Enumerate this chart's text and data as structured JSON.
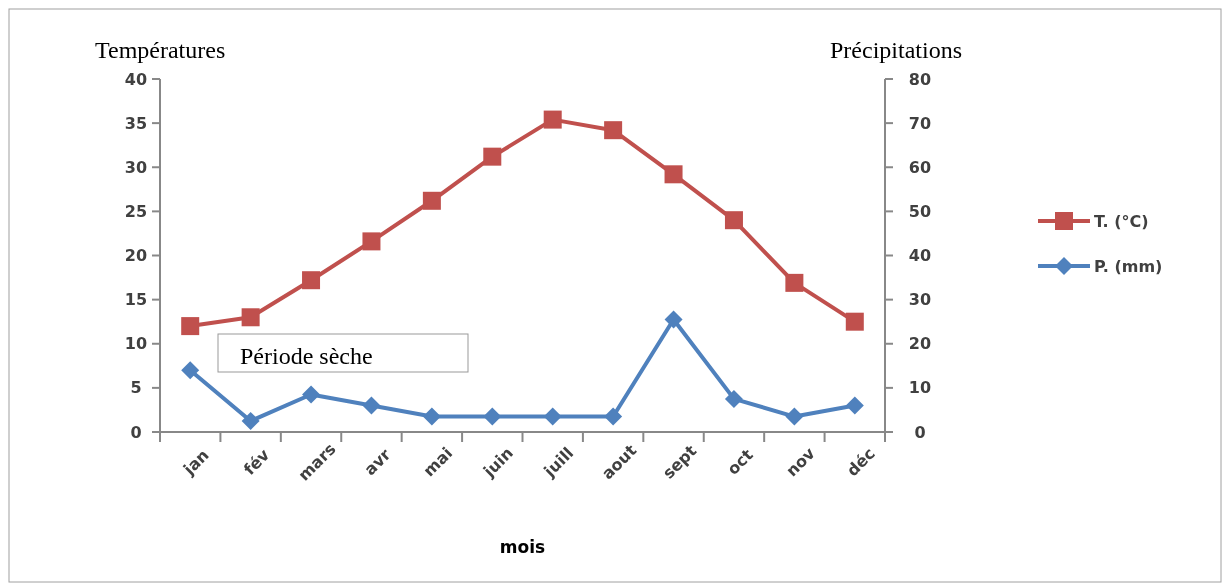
{
  "chart_data": {
    "type": "line",
    "categories": [
      "jan",
      "fév",
      "mars",
      "avr",
      "mai",
      "juin",
      "juill",
      "aout",
      "sept",
      "oct",
      "nov",
      "déc"
    ],
    "series": [
      {
        "name": "T. (°C)",
        "color": "#c0504d",
        "marker": "square",
        "values": [
          12,
          13,
          17.2,
          21.6,
          26.2,
          31.2,
          35.4,
          34.2,
          29.2,
          24,
          16.9,
          12.5
        ]
      },
      {
        "name": "P. (mm)",
        "color": "#4f81bd",
        "marker": "diamond",
        "axis": "y2",
        "values": [
          14,
          2.5,
          8.5,
          6,
          3.5,
          3.5,
          3.5,
          3.5,
          25.5,
          7.5,
          3.5,
          6
        ]
      }
    ],
    "xlabel": "mois",
    "ylabel": "Températures",
    "y2label": "Précipitations",
    "ylim": [
      0,
      40
    ],
    "yticks": [
      0,
      5,
      10,
      15,
      20,
      25,
      30,
      35,
      40
    ],
    "y2lim": [
      0,
      80
    ],
    "y2ticks": [
      0,
      10,
      20,
      30,
      40,
      50,
      60,
      70,
      80
    ],
    "annotations": [
      "Période sèche"
    ],
    "legend": "right",
    "grid": false
  }
}
